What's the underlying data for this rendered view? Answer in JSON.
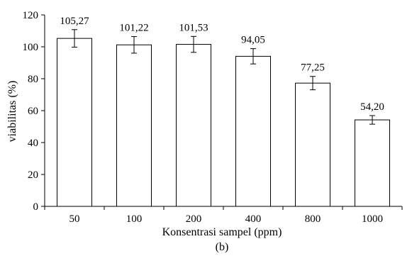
{
  "chart_data": {
    "type": "bar",
    "categories": [
      "50",
      "100",
      "200",
      "400",
      "800",
      "1000"
    ],
    "values": [
      105.27,
      101.22,
      101.53,
      94.05,
      77.25,
      54.2
    ],
    "errors": [
      5.5,
      5.2,
      5.0,
      4.8,
      4.2,
      2.7
    ],
    "data_labels": [
      "105,27",
      "101,22",
      "101,53",
      "94,05",
      "77,25",
      "54,20"
    ],
    "xlabel": "Konsentrasi sampel (ppm)",
    "ylabel": "viabilitas (%)",
    "panel_label": "(b)",
    "ylim": [
      0,
      120
    ],
    "yticks": [
      0,
      20,
      40,
      60,
      80,
      100,
      120
    ],
    "ytick_labels": [
      "0",
      "20",
      "40",
      "60",
      "80",
      "100",
      "120"
    ],
    "grid": false,
    "legend": "none",
    "bar_fill": "#ffffff",
    "bar_stroke": "#000000"
  }
}
